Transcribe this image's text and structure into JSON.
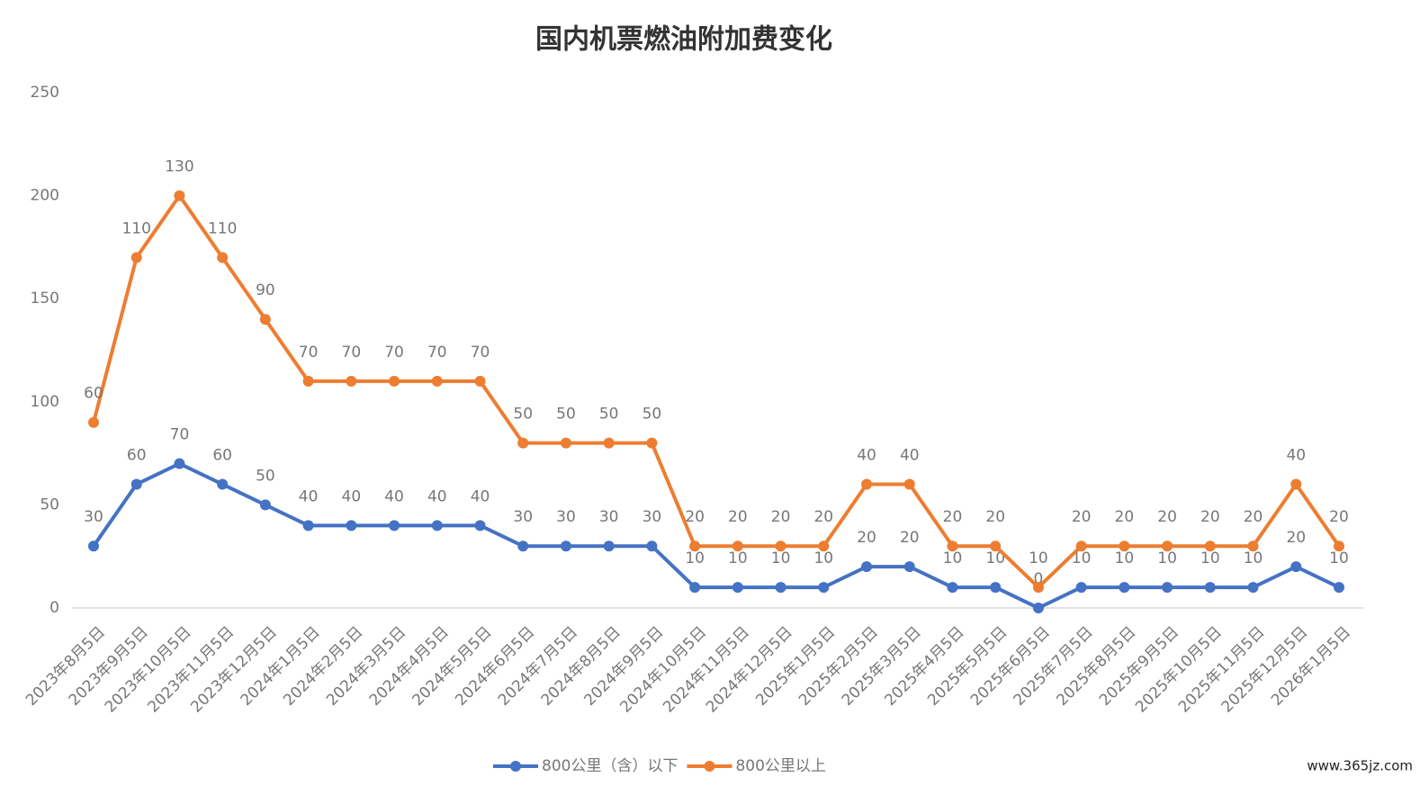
{
  "chart_data": {
    "type": "line",
    "stacked": true,
    "title": "国内机票燃油附加费变化",
    "categories": [
      "2023年8月5日",
      "2023年9月5日",
      "2023年10月5日",
      "2023年11月5日",
      "2023年12月5日",
      "2024年1月5日",
      "2024年2月5日",
      "2024年3月5日",
      "2024年4月5日",
      "2024年5月5日",
      "2024年6月5日",
      "2024年7月5日",
      "2024年8月5日",
      "2024年9月5日",
      "2024年10月5日",
      "2024年11月5日",
      "2024年12月5日",
      "2025年1月5日",
      "2025年2月5日",
      "2025年3月5日",
      "2025年4月5日",
      "2025年5月5日",
      "2025年6月5日",
      "2025年7月5日",
      "2025年8月5日",
      "2025年9月5日",
      "2025年10月5日",
      "2025年11月5日",
      "2025年12月5日",
      "2026年1月5日"
    ],
    "series": [
      {
        "name": "800公里（含）以下",
        "color": "#4472c4",
        "values": [
          30,
          60,
          70,
          60,
          50,
          40,
          40,
          40,
          40,
          40,
          30,
          30,
          30,
          30,
          10,
          10,
          10,
          10,
          20,
          20,
          10,
          10,
          0,
          10,
          10,
          10,
          10,
          10,
          20,
          10
        ]
      },
      {
        "name": "800公里以上",
        "color": "#ed7d31",
        "values": [
          60,
          110,
          130,
          110,
          90,
          70,
          70,
          70,
          70,
          70,
          50,
          50,
          50,
          50,
          20,
          20,
          20,
          20,
          40,
          40,
          20,
          20,
          10,
          20,
          20,
          20,
          20,
          20,
          40,
          20
        ]
      }
    ],
    "ylim": [
      0,
      250
    ],
    "yticks": [
      0,
      50,
      100,
      150,
      200,
      250
    ],
    "grid": false,
    "legend": "bottom",
    "watermark": "www.365jz.com"
  }
}
